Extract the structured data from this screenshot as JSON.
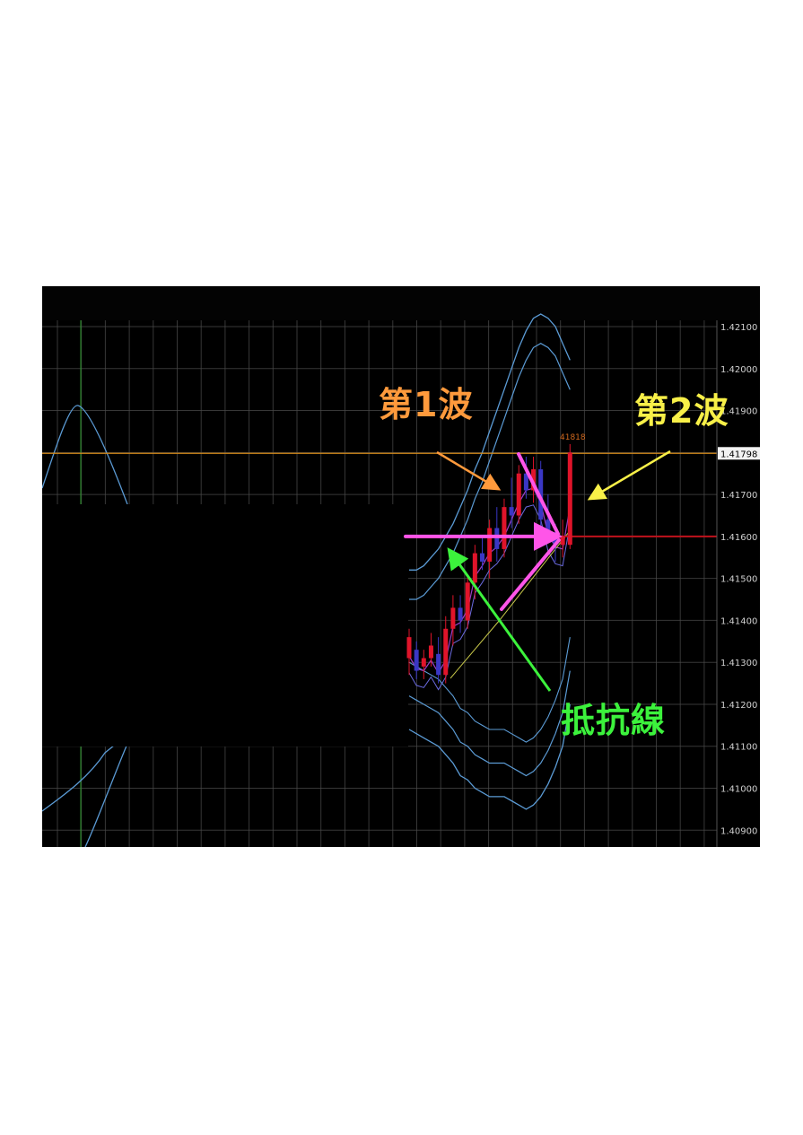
{
  "chart_data": {
    "type": "candlestick",
    "title": "",
    "xlabel": "",
    "ylabel": "",
    "ylim": [
      1.4086,
      1.42115
    ],
    "y_ticks": [
      "1.42100",
      "1.42000",
      "1.41900",
      "1.41800",
      "1.41700",
      "1.41600",
      "1.41500",
      "1.41400",
      "1.41300",
      "1.41200",
      "1.41100",
      "1.41000",
      "1.40900"
    ],
    "current_price_label": "1.41798",
    "high_marker_label": "41818",
    "resistance_level": 1.416,
    "horizontal_line_level": 1.41798,
    "grid": true,
    "candles": [
      {
        "o": 1.4131,
        "h": 1.4138,
        "l": 1.4127,
        "c": 1.4136
      },
      {
        "o": 1.4133,
        "h": 1.4135,
        "l": 1.4126,
        "c": 1.4128
      },
      {
        "o": 1.4129,
        "h": 1.4133,
        "l": 1.4126,
        "c": 1.4131
      },
      {
        "o": 1.4131,
        "h": 1.4137,
        "l": 1.4129,
        "c": 1.4134
      },
      {
        "o": 1.4132,
        "h": 1.4136,
        "l": 1.4125,
        "c": 1.4127
      },
      {
        "o": 1.4127,
        "h": 1.4141,
        "l": 1.4125,
        "c": 1.4138
      },
      {
        "o": 1.4138,
        "h": 1.4146,
        "l": 1.4134,
        "c": 1.4143
      },
      {
        "o": 1.4143,
        "h": 1.4146,
        "l": 1.4137,
        "c": 1.414
      },
      {
        "o": 1.414,
        "h": 1.4151,
        "l": 1.4138,
        "c": 1.4149
      },
      {
        "o": 1.4149,
        "h": 1.4158,
        "l": 1.4145,
        "c": 1.4156
      },
      {
        "o": 1.4156,
        "h": 1.416,
        "l": 1.4152,
        "c": 1.4154
      },
      {
        "o": 1.4154,
        "h": 1.4164,
        "l": 1.415,
        "c": 1.4162
      },
      {
        "o": 1.4162,
        "h": 1.4167,
        "l": 1.4154,
        "c": 1.4157
      },
      {
        "o": 1.4157,
        "h": 1.4169,
        "l": 1.4155,
        "c": 1.4167
      },
      {
        "o": 1.4167,
        "h": 1.4174,
        "l": 1.4162,
        "c": 1.4165
      },
      {
        "o": 1.4165,
        "h": 1.4177,
        "l": 1.4163,
        "c": 1.4175
      },
      {
        "o": 1.4175,
        "h": 1.4179,
        "l": 1.4169,
        "c": 1.4171
      },
      {
        "o": 1.4171,
        "h": 1.4179,
        "l": 1.4168,
        "c": 1.4176
      },
      {
        "o": 1.4176,
        "h": 1.4178,
        "l": 1.4162,
        "c": 1.4164
      },
      {
        "o": 1.4164,
        "h": 1.417,
        "l": 1.4159,
        "c": 1.4161
      },
      {
        "o": 1.4161,
        "h": 1.4163,
        "l": 1.4154,
        "c": 1.4158
      },
      {
        "o": 1.4158,
        "h": 1.4164,
        "l": 1.4155,
        "c": 1.416
      },
      {
        "o": 1.4158,
        "h": 1.4182,
        "l": 1.4157,
        "c": 1.418
      }
    ],
    "bollinger_upper": [
      1.4152,
      1.4152,
      1.4153,
      1.4155,
      1.4157,
      1.416,
      1.4163,
      1.4167,
      1.4171,
      1.4176,
      1.418,
      1.4185,
      1.419,
      1.4195,
      1.42,
      1.4205,
      1.4209,
      1.4212,
      1.4213,
      1.4212,
      1.421,
      1.4206,
      1.4202
    ],
    "bollinger_lower": [
      1.4114,
      1.4113,
      1.4112,
      1.4111,
      1.411,
      1.4108,
      1.4106,
      1.4103,
      1.4102,
      1.41,
      1.4099,
      1.4098,
      1.4098,
      1.4098,
      1.4097,
      1.4096,
      1.4095,
      1.4096,
      1.4098,
      1.4101,
      1.4105,
      1.411,
      1.412
    ]
  },
  "annotations": {
    "wave1": "第1波",
    "wave2": "第2波",
    "resistance": "抵抗線"
  },
  "colors": {
    "background": "#000000",
    "bull_candle": "#e0142a",
    "bear_candle": "#3a37c4",
    "bands": "#5b9bd5",
    "grid": "#4a4a4a",
    "orange_line": "#d48a1a",
    "red_line": "#c0121c",
    "pink": "#ff55e8",
    "wave1_color": "#ff9a3c",
    "wave2_color": "#f8f048",
    "resistance_color": "#3cf23c"
  }
}
